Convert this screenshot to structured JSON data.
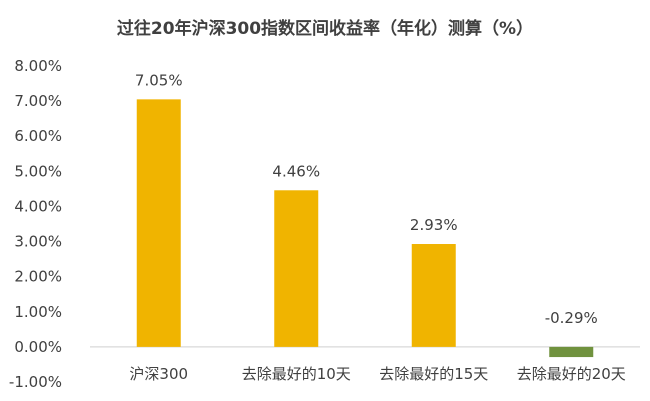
{
  "chart_data": {
    "type": "bar",
    "title": "过往20年沪深300指数区间收益率（年化）测算（%）",
    "categories": [
      "沪深300",
      "去除最好的10天",
      "去除最好的15天",
      "去除最好的20天"
    ],
    "values": [
      7.05,
      4.46,
      2.93,
      -0.29
    ],
    "data_labels": [
      "7.05%",
      "4.46%",
      "2.93%",
      "-0.29%"
    ],
    "y_ticks": [
      "8.00%",
      "7.00%",
      "6.00%",
      "5.00%",
      "4.00%",
      "3.00%",
      "2.00%",
      "1.00%",
      "0.00%",
      "-1.00%"
    ],
    "ylim": [
      -1,
      8
    ],
    "xlabel": "",
    "ylabel": "",
    "grid": false,
    "legend": "none",
    "colors": {
      "positive": "#F0B400",
      "negative": "#70923E",
      "axis": "#D9D9D9",
      "text": "#404040"
    }
  }
}
